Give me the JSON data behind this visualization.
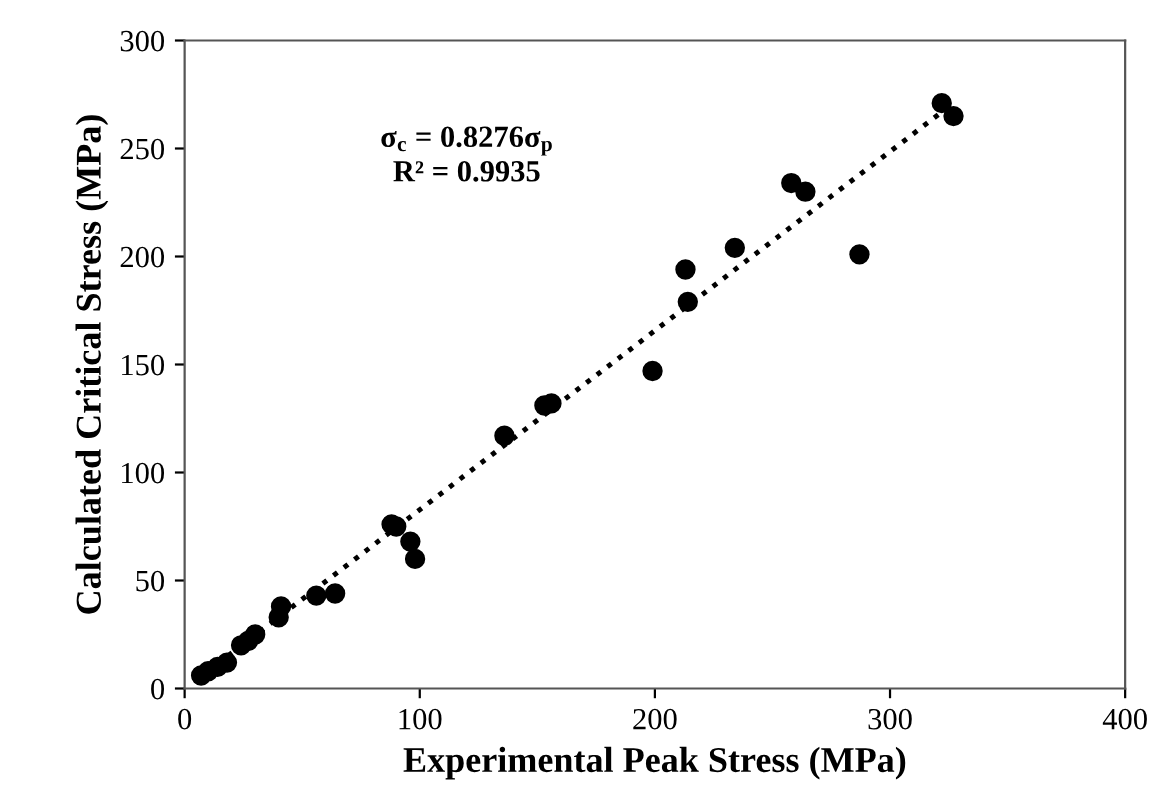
{
  "chart_data": {
    "type": "scatter",
    "xlabel": "Experimental Peak Stress (MPa)",
    "ylabel": "Calculated Critical Stress (MPa)",
    "xlim": [
      0,
      400
    ],
    "ylim": [
      0,
      300
    ],
    "xticks": [
      0,
      100,
      200,
      300,
      400
    ],
    "yticks": [
      0,
      50,
      100,
      150,
      200,
      250,
      300
    ],
    "grid": false,
    "marker": "circle",
    "annotations": [
      "σ$_{c}$ = 0.8276σ$_{p}$\nR² = 0.9935"
    ],
    "series": [
      {
        "color": "#000000",
        "x": [
          7,
          10,
          14,
          18,
          24,
          27,
          30,
          40,
          41,
          56,
          64,
          88,
          90,
          96,
          98,
          136,
          153,
          156,
          199,
          213,
          214,
          234,
          258,
          264,
          287,
          322,
          327
        ],
        "values": [
          6,
          8,
          10,
          12,
          20,
          22,
          25,
          33,
          38,
          43,
          44,
          76,
          75,
          68,
          60,
          117,
          131,
          132,
          147,
          194,
          179,
          204,
          234,
          230,
          201,
          271,
          265
        ]
      },
      {
        "type": "line",
        "color": "#000000",
        "line_style": "dotted",
        "marker": "none",
        "x": [
          5,
          327
        ],
        "values": [
          4,
          271
        ]
      }
    ]
  }
}
